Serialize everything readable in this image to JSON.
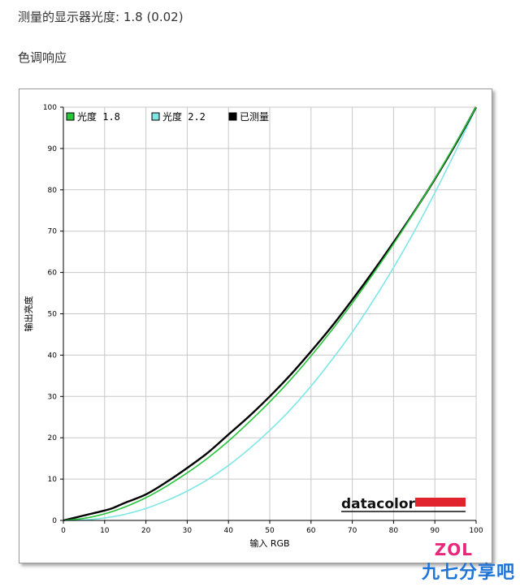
{
  "header": {
    "gamma_text": "测量的显示器光度:  1.8 (0.02)",
    "section_title": "色调响应"
  },
  "colors": {
    "gamma18": "#27c43c",
    "gamma22": "#7fe6e6",
    "measured": "#000000",
    "datacolor_bar": "#e0232c",
    "grid": "#c8c8c8"
  },
  "chart_data": {
    "type": "line",
    "xlabel": "输入 RGB",
    "ylabel": "输出亮度",
    "xlim": [
      0,
      100
    ],
    "ylim": [
      0,
      100
    ],
    "x_ticks": [
      0,
      10,
      20,
      30,
      40,
      50,
      60,
      70,
      80,
      90,
      100
    ],
    "y_ticks": [
      0,
      10,
      20,
      30,
      40,
      50,
      60,
      70,
      80,
      90,
      100
    ],
    "grid": true,
    "legend_position": "top-left",
    "legend": [
      "光度 1.8",
      "光度 2.2",
      "已测量"
    ],
    "series": [
      {
        "name": "光度 1.8",
        "color_key": "gamma18",
        "x": [
          0,
          5,
          10,
          15,
          20,
          25,
          30,
          35,
          40,
          45,
          50,
          55,
          60,
          65,
          70,
          75,
          80,
          85,
          90,
          95,
          100
        ],
        "y": [
          0,
          0.5,
          1.6,
          3.3,
          5.5,
          8.3,
          11.5,
          15.1,
          19.2,
          23.8,
          28.7,
          34.0,
          39.8,
          46.0,
          52.6,
          59.6,
          66.9,
          74.6,
          82.7,
          91.2,
          100
        ]
      },
      {
        "name": "光度 2.2",
        "color_key": "gamma22",
        "x": [
          0,
          5,
          10,
          15,
          20,
          25,
          30,
          35,
          40,
          45,
          50,
          55,
          60,
          65,
          70,
          75,
          80,
          85,
          90,
          95,
          100
        ],
        "y": [
          0,
          0.1,
          0.6,
          1.5,
          2.9,
          4.8,
          7.1,
          9.9,
          13.3,
          17.3,
          21.8,
          26.8,
          32.5,
          38.8,
          45.6,
          53.1,
          61.2,
          69.9,
          79.3,
          89.3,
          100
        ]
      },
      {
        "name": "已测量",
        "color_key": "measured",
        "x": [
          0,
          5,
          10,
          12,
          15,
          20,
          25,
          30,
          35,
          40,
          45,
          50,
          55,
          60,
          65,
          70,
          75,
          80,
          85,
          90,
          95,
          100
        ],
        "y": [
          0,
          1.2,
          2.4,
          3.0,
          4.3,
          6.3,
          9.3,
          12.7,
          16.4,
          20.8,
          25.2,
          30.0,
          35.2,
          40.9,
          46.9,
          53.4,
          60.2,
          67.3,
          74.7,
          82.6,
          91.0,
          100
        ]
      }
    ]
  },
  "logo": {
    "brand": "datacolor"
  },
  "watermark": {
    "zol": "ZOL",
    "text": "九七分享吧"
  }
}
